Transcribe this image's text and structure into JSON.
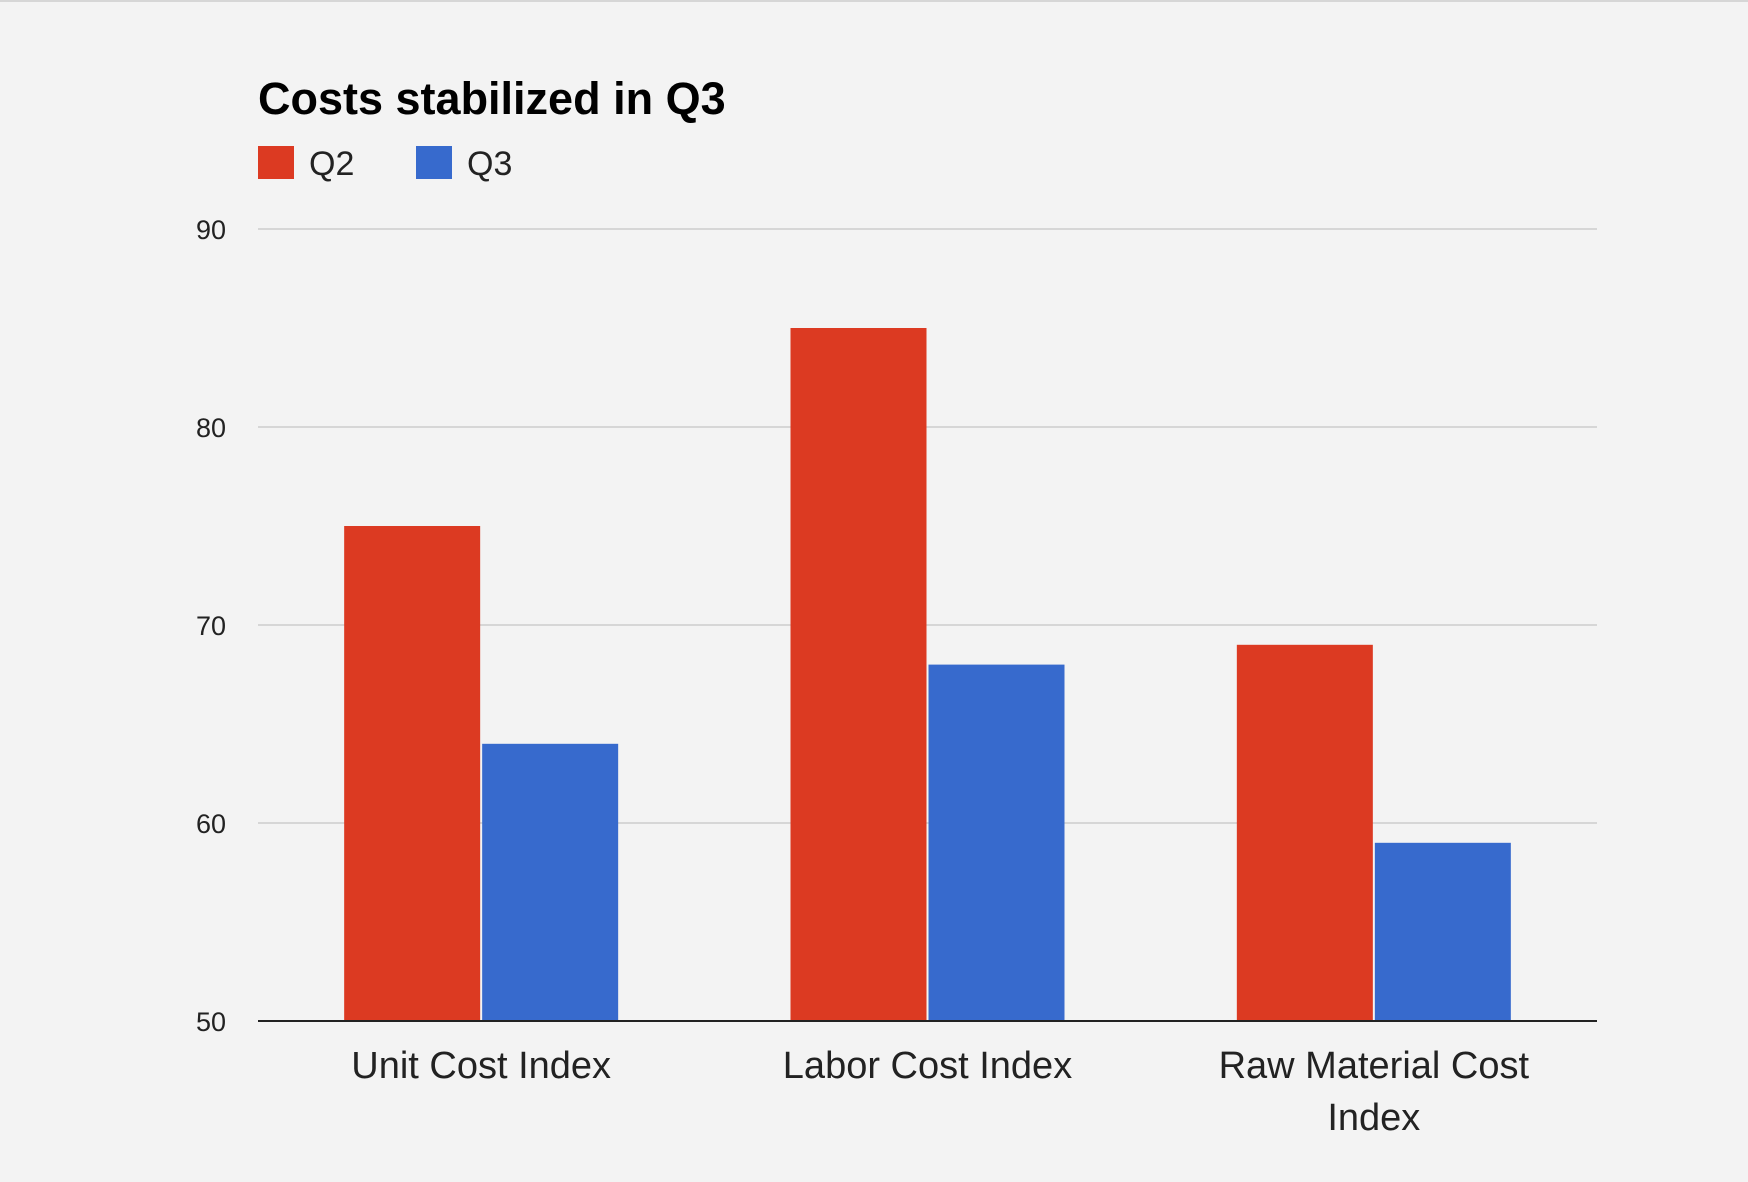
{
  "chart_data": {
    "type": "bar",
    "title": "Costs stabilized in Q3",
    "categories": [
      [
        "Unit Cost Index"
      ],
      [
        "Labor Cost Index"
      ],
      [
        "Raw Material Cost",
        "Index"
      ]
    ],
    "category_names": [
      "Unit Cost Index",
      "Labor Cost Index",
      "Raw Material Cost Index"
    ],
    "series": [
      {
        "name": "Q2",
        "color": "#dc3a22",
        "values": [
          75,
          85,
          69
        ]
      },
      {
        "name": "Q3",
        "color": "#376acd",
        "values": [
          64,
          68,
          59
        ]
      }
    ],
    "ylim": [
      50,
      90
    ],
    "yticks": [
      50,
      60,
      70,
      80,
      90
    ],
    "xlabel": "",
    "ylabel": "",
    "grid": true,
    "legend_position": "top-left"
  }
}
